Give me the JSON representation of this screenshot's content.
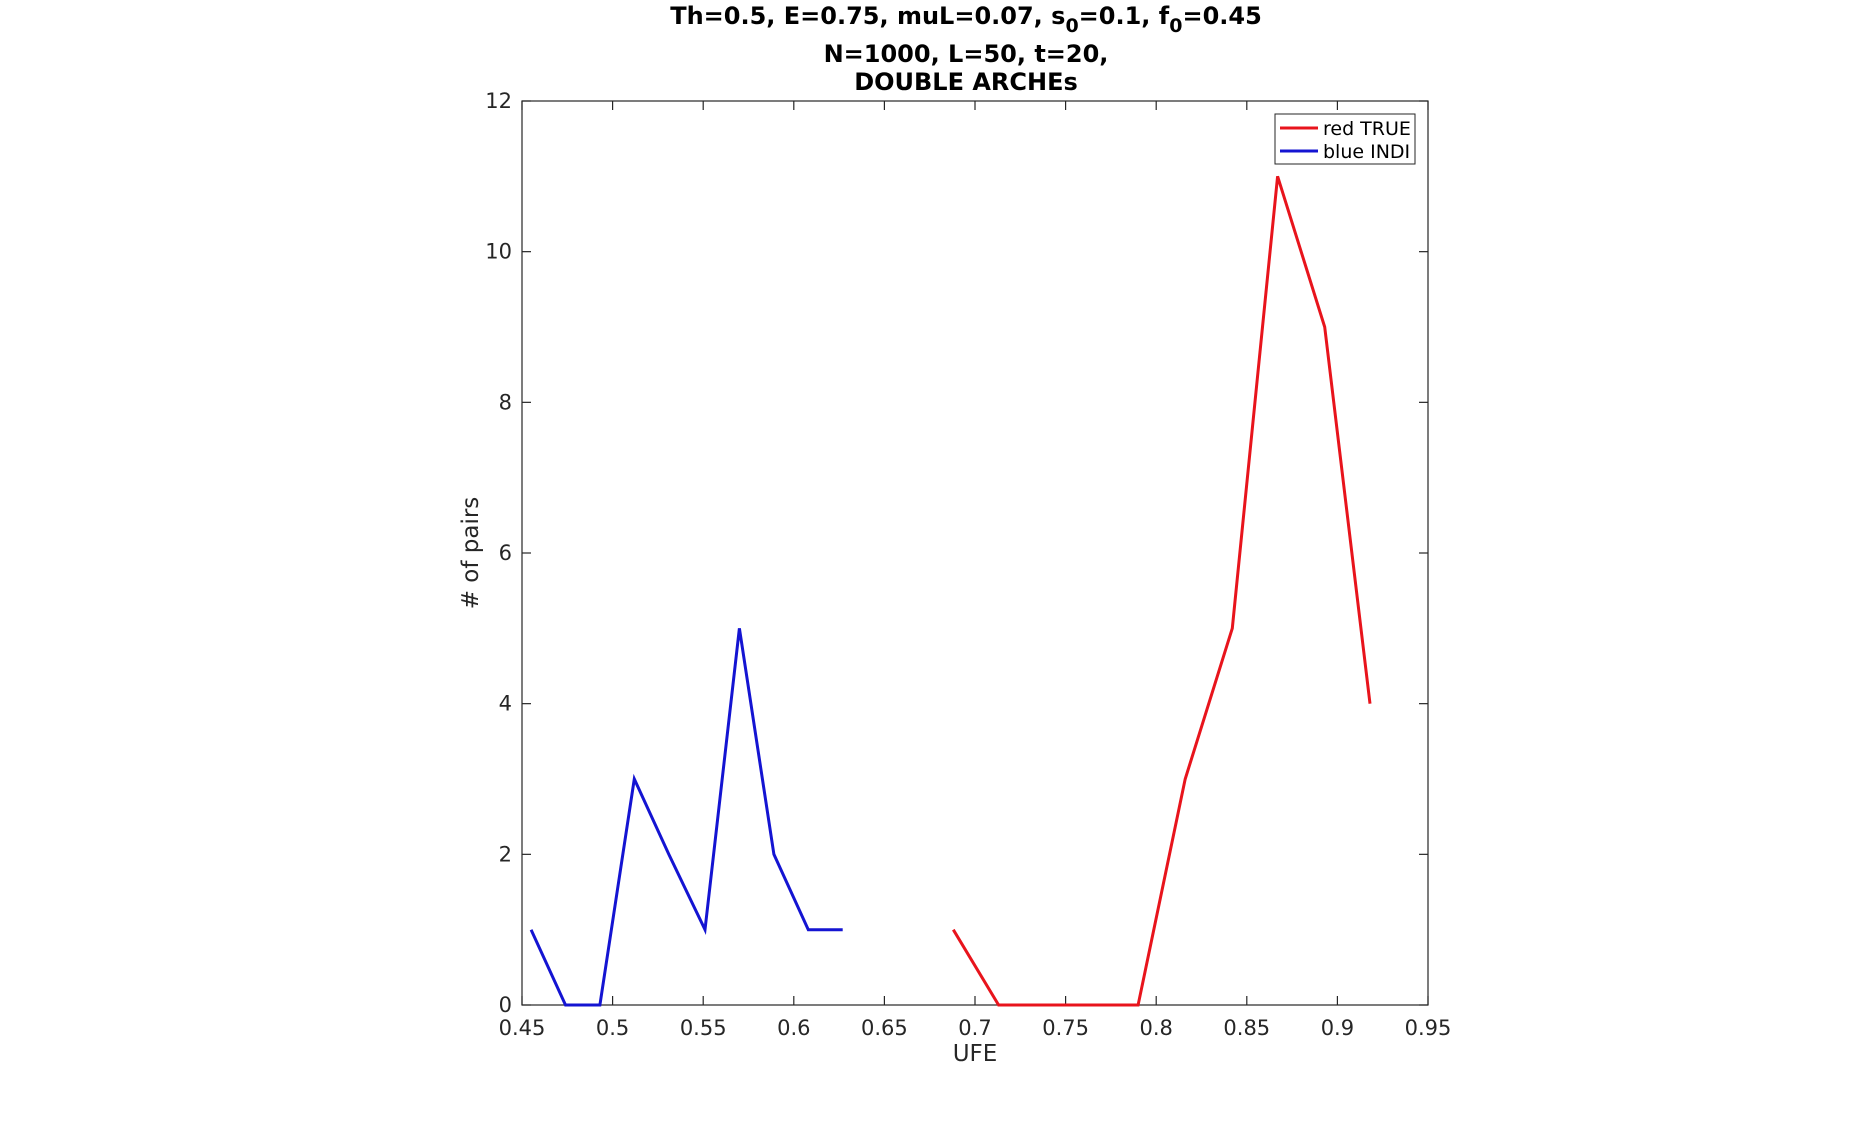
{
  "chart_data": {
    "type": "line",
    "title_line1_parts": [
      "Th=0.5, E=0.75, muL=0.07, s",
      "0",
      "=0.1, f",
      "0",
      "=0.45"
    ],
    "title_line2": "N=1000, L=50, t=20,",
    "title_line3": "DOUBLE ARCHEs",
    "xlabel": "UFE",
    "ylabel": "# of pairs",
    "xlim": [
      0.45,
      0.95
    ],
    "ylim": [
      0,
      12
    ],
    "xticks": [
      0.45,
      0.5,
      0.55,
      0.6,
      0.65,
      0.7,
      0.75,
      0.8,
      0.85,
      0.9,
      0.95
    ],
    "xtick_labels": [
      "0.45",
      "0.5",
      "0.55",
      "0.6",
      "0.65",
      "0.7",
      "0.75",
      "0.8",
      "0.85",
      "0.9",
      "0.95"
    ],
    "yticks": [
      0,
      2,
      4,
      6,
      8,
      10,
      12
    ],
    "ytick_labels": [
      "0",
      "2",
      "4",
      "6",
      "8",
      "10",
      "12"
    ],
    "grid": false,
    "legend_position": "top-right",
    "series": [
      {
        "name": "red TRUE",
        "color": "#e8141c",
        "x": [
          0.688,
          0.713,
          0.739,
          0.764,
          0.79,
          0.816,
          0.842,
          0.867,
          0.893,
          0.918
        ],
        "y": [
          1,
          0,
          0,
          0,
          0,
          3,
          5,
          11,
          9,
          4
        ]
      },
      {
        "name": "blue INDI",
        "color": "#1414d2",
        "x": [
          0.455,
          0.474,
          0.493,
          0.512,
          0.531,
          0.551,
          0.57,
          0.589,
          0.608,
          0.627
        ],
        "y": [
          1,
          0,
          0,
          3,
          2,
          1,
          5,
          2,
          1,
          1
        ]
      }
    ]
  }
}
